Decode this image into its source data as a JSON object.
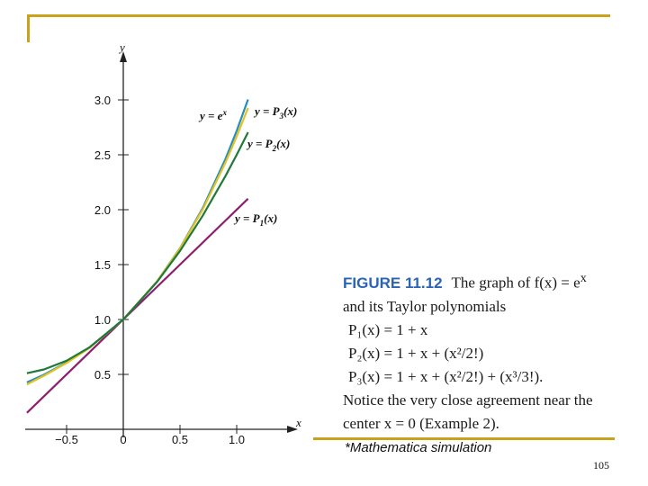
{
  "colors": {
    "frame": "#c9a21b",
    "axis": "#222222",
    "exp": "#1f8fc4",
    "p1": "#8e1f6e",
    "p2": "#1f7a3a",
    "p3": "#e5c21f"
  },
  "chart_data": {
    "type": "line",
    "xlabel": "x",
    "ylabel": "y",
    "xlim": [
      -0.85,
      1.55
    ],
    "ylim": [
      0.0,
      3.3
    ],
    "x_ticks": [
      -0.5,
      0,
      0.5,
      1.0
    ],
    "x_tick_labels": [
      "−0.5",
      "0",
      "0.5",
      "1.0"
    ],
    "y_ticks": [
      0.5,
      1.0,
      1.5,
      2.0,
      2.5,
      3.0
    ],
    "y_tick_labels": [
      "0.5",
      "1.0",
      "1.5",
      "2.0",
      "2.5",
      "3.0"
    ],
    "series": [
      {
        "name": "y = e^x",
        "label_main": "y = e",
        "label_sup": "x",
        "color": "#1f8fc4",
        "x": [
          -0.85,
          -0.7,
          -0.5,
          -0.3,
          0,
          0.3,
          0.5,
          0.7,
          0.9,
          1.0,
          1.1
        ],
        "y": [
          0.427,
          0.497,
          0.607,
          0.741,
          1.0,
          1.35,
          1.649,
          2.014,
          2.46,
          2.718,
          3.004
        ]
      },
      {
        "name": "y = P1(x)",
        "label_main": "y = P",
        "label_sub": "1",
        "label_tail": "(x)",
        "color": "#8e1f6e",
        "x": [
          -0.85,
          0,
          1.1
        ],
        "y": [
          0.15,
          1.0,
          2.1
        ]
      },
      {
        "name": "y = P2(x)",
        "label_main": "y = P",
        "label_sub": "2",
        "label_tail": "(x)",
        "color": "#1f7a3a",
        "x": [
          -0.85,
          -0.7,
          -0.5,
          -0.3,
          0,
          0.3,
          0.5,
          0.7,
          0.9,
          1.0,
          1.1
        ],
        "y": [
          0.511,
          0.545,
          0.625,
          0.745,
          1.0,
          1.345,
          1.625,
          1.945,
          2.305,
          2.5,
          2.705
        ]
      },
      {
        "name": "y = P3(x)",
        "label_main": "y = P",
        "label_sub": "3",
        "label_tail": "(x)",
        "color": "#e5c21f",
        "x": [
          -0.85,
          -0.7,
          -0.5,
          -0.3,
          0,
          0.3,
          0.5,
          0.7,
          0.9,
          1.0,
          1.1
        ],
        "y": [
          0.409,
          0.488,
          0.604,
          0.741,
          1.0,
          1.35,
          1.646,
          2.002,
          2.427,
          2.667,
          2.927
        ]
      }
    ]
  },
  "caption": {
    "figure_label": "FIGURE 11.12",
    "line1": "The graph of f(x) = e",
    "line1_sup": "x",
    "line2": "and its Taylor polynomials",
    "p1": "P₁(x) = 1 + x",
    "p2": "P₂(x) = 1 + x + (x²/2!)",
    "p3": "P₃(x) = 1 + x + (x²/2!) + (x³/3!).",
    "line6": "Notice the very close agreement near the",
    "line7": "center x = 0 (Example 2)."
  },
  "note": "*Mathematica simulation",
  "page_number": "105"
}
